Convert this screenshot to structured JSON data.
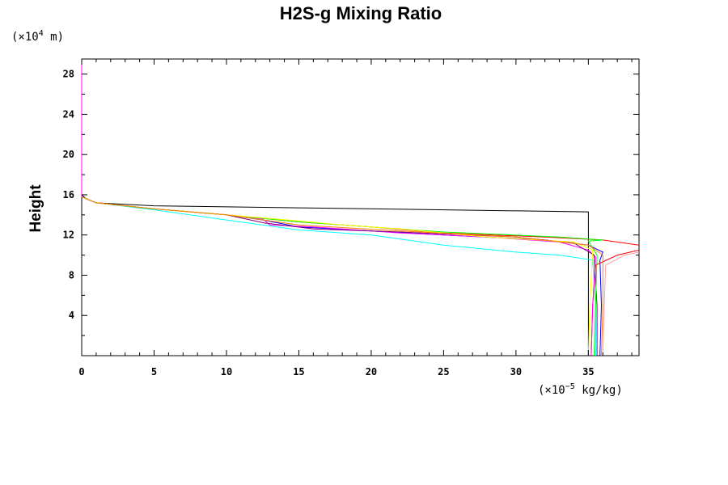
{
  "chart_data": {
    "type": "line",
    "title": "H2S-g Mixing Ratio",
    "ylabel": "Height",
    "xunit": {
      "prefix": "(×10",
      "exp": "−5",
      "suffix": " kg/kg)"
    },
    "yunit": {
      "prefix": "(×10",
      "exp": "4",
      "suffix": " m)"
    },
    "xlim": [
      0,
      38.5
    ],
    "ylim": [
      0,
      29.5
    ],
    "xticks": [
      0,
      5,
      10,
      15,
      20,
      25,
      30,
      35
    ],
    "xtick_labels": [
      "0",
      "5",
      "10",
      "15",
      "20",
      "25",
      "30",
      "35"
    ],
    "yticks": [
      4,
      8,
      12,
      16,
      20,
      24,
      28
    ],
    "ytick_labels": [
      "4",
      "8",
      "12",
      "16",
      "20",
      "24",
      "28"
    ],
    "grid": false,
    "series": [
      {
        "color": "#000000",
        "points": [
          [
            35.0,
            0
          ],
          [
            35.0,
            14.3
          ],
          [
            15,
            14.7
          ],
          [
            5,
            14.9
          ],
          [
            1,
            15.2
          ],
          [
            0.3,
            15.6
          ],
          [
            0,
            16.0
          ]
        ]
      },
      {
        "color": "#0000ff",
        "points": [
          [
            35.8,
            0
          ],
          [
            35.9,
            5
          ],
          [
            35.8,
            9.5
          ],
          [
            36.0,
            10.3
          ],
          [
            35.0,
            11.0
          ],
          [
            32,
            11.5
          ],
          [
            25,
            12.0
          ],
          [
            20,
            12.4
          ],
          [
            15,
            12.8
          ],
          [
            12.5,
            13.5
          ],
          [
            10,
            14.0
          ],
          [
            5,
            14.6
          ],
          [
            1,
            15.2
          ],
          [
            0,
            15.8
          ]
        ]
      },
      {
        "color": "#00ffff",
        "points": [
          [
            35.5,
            0
          ],
          [
            35.5,
            5
          ],
          [
            35.3,
            9.5
          ],
          [
            33,
            10.0
          ],
          [
            30,
            10.3
          ],
          [
            25,
            11.0
          ],
          [
            22,
            11.6
          ],
          [
            20,
            12.0
          ],
          [
            15,
            12.5
          ],
          [
            10,
            13.5
          ],
          [
            5,
            14.5
          ],
          [
            1,
            15.2
          ],
          [
            0,
            15.8
          ]
        ]
      },
      {
        "color": "#ff0000",
        "points": [
          [
            35.2,
            0
          ],
          [
            35.3,
            5
          ],
          [
            35.5,
            9.0
          ],
          [
            37,
            10.0
          ],
          [
            38.5,
            10.5
          ]
        ]
      },
      {
        "color": "#ff0000",
        "points": [
          [
            38.5,
            11.0
          ],
          [
            36,
            11.5
          ],
          [
            32,
            11.8
          ],
          [
            25,
            12.2
          ],
          [
            20,
            12.8
          ],
          [
            15,
            13.3
          ],
          [
            10,
            14.0
          ],
          [
            5,
            14.6
          ],
          [
            1,
            15.2
          ],
          [
            0,
            15.8
          ]
        ]
      },
      {
        "color": "#ffa0a0",
        "points": [
          [
            36.0,
            0
          ],
          [
            36.1,
            5
          ],
          [
            36.2,
            9.0
          ],
          [
            37.5,
            10.0
          ],
          [
            38.5,
            10.3
          ]
        ]
      },
      {
        "color": "#ff00ff",
        "points": [
          [
            35.2,
            0
          ],
          [
            35.3,
            5
          ],
          [
            35.5,
            9.8
          ],
          [
            35.0,
            10.5
          ],
          [
            33,
            11.3
          ],
          [
            28,
            11.8
          ],
          [
            22,
            12.2
          ],
          [
            16,
            12.8
          ],
          [
            13,
            13.0
          ],
          [
            12.5,
            13.6
          ],
          [
            10,
            14.0
          ],
          [
            5,
            14.6
          ],
          [
            1,
            15.2
          ],
          [
            0,
            15.8
          ]
        ]
      },
      {
        "color": "#800080",
        "points": [
          [
            35.6,
            0
          ],
          [
            35.6,
            5
          ],
          [
            35.4,
            10.0
          ],
          [
            34,
            11.2
          ],
          [
            30,
            11.8
          ],
          [
            22,
            12.3
          ],
          [
            16,
            12.6
          ],
          [
            12.6,
            13.2
          ],
          [
            10,
            14.0
          ],
          [
            5,
            14.6
          ],
          [
            1,
            15.2
          ],
          [
            0,
            15.8
          ]
        ]
      },
      {
        "color": "#00ff00",
        "points": [
          [
            35.4,
            0
          ],
          [
            35.5,
            5
          ],
          [
            35.6,
            10.0
          ],
          [
            35.0,
            11.4
          ],
          [
            36.0,
            11.5
          ],
          [
            33,
            11.8
          ],
          [
            25,
            12.3
          ],
          [
            20,
            12.8
          ],
          [
            15,
            13.3
          ],
          [
            10,
            14.0
          ],
          [
            5,
            14.6
          ],
          [
            1,
            15.2
          ],
          [
            0,
            15.8
          ]
        ]
      },
      {
        "color": "#ffff00",
        "points": [
          [
            35.0,
            0
          ],
          [
            35.1,
            5
          ],
          [
            35.3,
            10.5
          ],
          [
            34,
            11.3
          ],
          [
            28,
            11.8
          ],
          [
            22,
            12.6
          ],
          [
            18,
            13.0
          ],
          [
            15,
            13.4
          ],
          [
            10,
            14.0
          ],
          [
            5,
            14.6
          ],
          [
            1,
            15.2
          ],
          [
            0,
            15.8
          ]
        ]
      },
      {
        "color": "#ff8000",
        "points": [
          [
            35.9,
            0
          ],
          [
            36.0,
            5
          ],
          [
            36.0,
            10.0
          ],
          [
            35.0,
            11.0
          ],
          [
            30,
            11.8
          ],
          [
            22,
            12.4
          ],
          [
            15,
            13.0
          ],
          [
            10,
            14.0
          ],
          [
            5,
            14.6
          ],
          [
            1,
            15.2
          ],
          [
            0,
            15.8
          ]
        ]
      },
      {
        "color": "#ff00ff",
        "points": [
          [
            0,
            29.5
          ],
          [
            0,
            15.8
          ]
        ]
      }
    ]
  }
}
